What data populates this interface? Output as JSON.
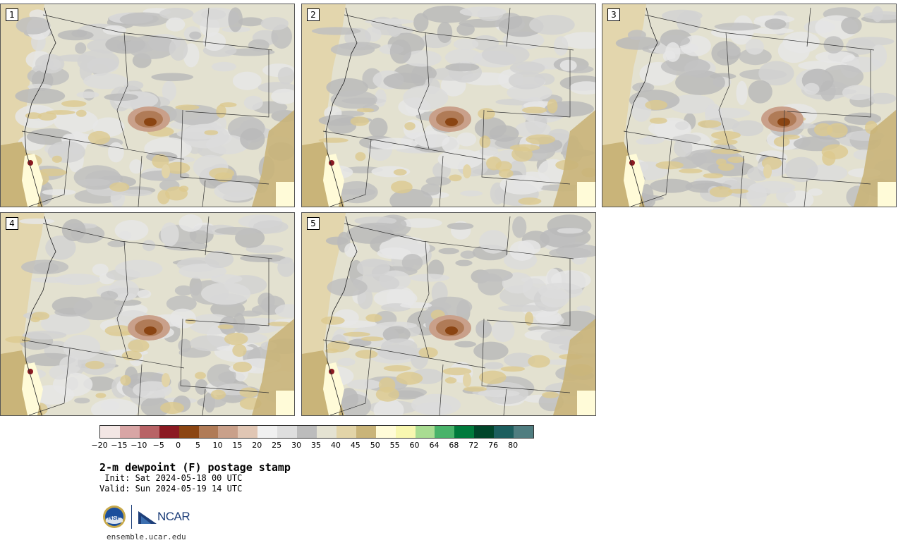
{
  "panels": [
    {
      "label": "1"
    },
    {
      "label": "2"
    },
    {
      "label": "3"
    },
    {
      "label": "4"
    },
    {
      "label": "5"
    }
  ],
  "colorbar": {
    "colors": [
      "#f3e6e4",
      "#d8a5a5",
      "#b86366",
      "#8b1a22",
      "#8b4513",
      "#b07b57",
      "#c9a08a",
      "#e0c6b4",
      "#f0f0f0",
      "#dedede",
      "#bcbcbc",
      "#e4e2d2",
      "#e2d4a8",
      "#c9b479",
      "#fffbd8",
      "#f8f7b0",
      "#a9dc92",
      "#49b36a",
      "#007a3c",
      "#00452a",
      "#1c5e5e",
      "#4f7d80"
    ],
    "ticks": [
      "−20",
      "−15",
      "−10",
      "−5",
      "0",
      "5",
      "10",
      "15",
      "20",
      "25",
      "30",
      "35",
      "40",
      "45",
      "50",
      "55",
      "60",
      "64",
      "68",
      "72",
      "76",
      "80"
    ]
  },
  "title": "2-m dewpoint (F) postage stamp",
  "init": " Init: Sat 2024-05-18 00 UTC",
  "valid": "Valid: Sun 2024-05-19 14 UTC",
  "logos": {
    "nsf": "NSF",
    "ncar": "NCAR"
  },
  "website": "ensemble.ucar.edu"
}
